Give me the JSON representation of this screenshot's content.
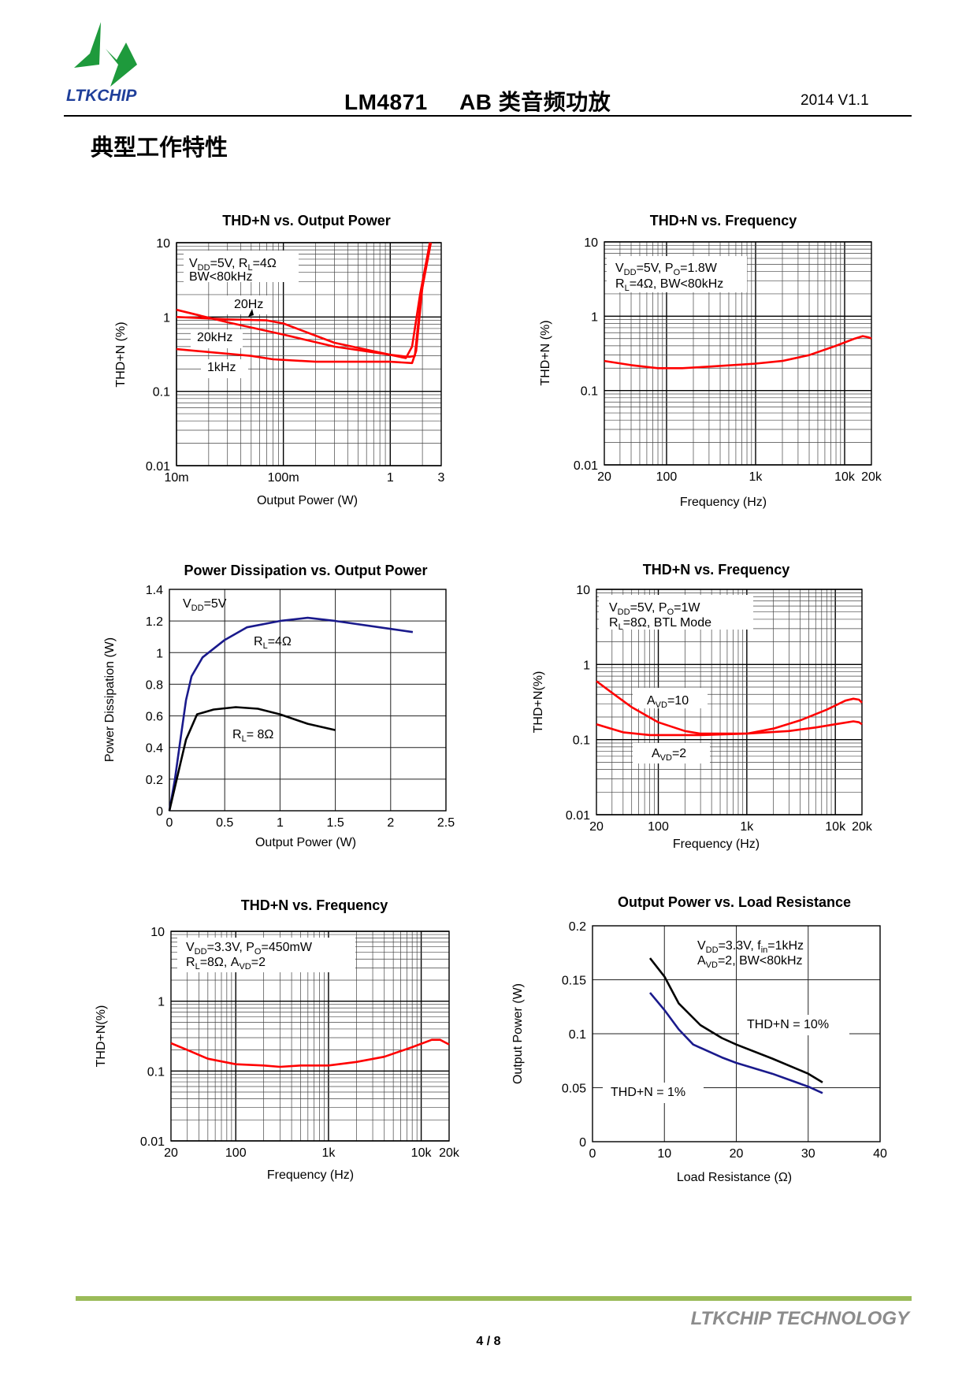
{
  "header": {
    "logo_text": "LTKCHIP",
    "doc_title": "LM4871     AB 类音频功放",
    "version": "2014 V1.1",
    "colors": {
      "logo_green": "#1e9a3c",
      "logo_blue": "#1f3f9a"
    }
  },
  "section_title": "典型工作特性",
  "footer": {
    "brand": "LTKCHIP TECHNOLOGY",
    "page": "4 / 8",
    "bar_color": "#9bbb59"
  },
  "chart_data": [
    {
      "type": "line",
      "title": "THD+N vs. Output Power",
      "xlabel": "Output Power (W)",
      "ylabel": "THD+N (%)",
      "xscale": "log",
      "yscale": "log",
      "xlim": [
        0.01,
        3
      ],
      "ylim": [
        0.01,
        10
      ],
      "x_ticks": [
        0.01,
        0.1,
        1,
        3
      ],
      "x_tick_labels": [
        "10m",
        "100m",
        "1",
        "3"
      ],
      "y_ticks": [
        0.01,
        0.1,
        1,
        10
      ],
      "y_tick_labels": [
        "0.01",
        "0.1",
        "1",
        "10"
      ],
      "grid": true,
      "annotations": [
        [
          {
            "t": "V"
          },
          {
            "sub": "DD"
          },
          {
            "t": "=5V, R"
          },
          {
            "sub": "L"
          },
          {
            "t": "=4Ω"
          }
        ],
        [
          {
            "t": "BW<80kHz"
          }
        ],
        [
          {
            "t": "20Hz"
          }
        ],
        [
          {
            "t": "20kHz"
          }
        ],
        [
          {
            "t": "1kHz"
          }
        ]
      ],
      "series": [
        {
          "name": "20kHz",
          "color": "#ff0000",
          "points": [
            [
              0.01,
              1.25
            ],
            [
              0.03,
              0.85
            ],
            [
              0.1,
              0.58
            ],
            [
              0.3,
              0.4
            ],
            [
              1,
              0.31
            ],
            [
              1.4,
              0.28
            ],
            [
              1.6,
              0.4
            ],
            [
              1.9,
              2
            ],
            [
              2.35,
              10
            ]
          ]
        },
        {
          "name": "20Hz",
          "color": "#ff0000",
          "points": [
            [
              0.01,
              1.0
            ],
            [
              0.03,
              0.93
            ],
            [
              0.07,
              0.9
            ],
            [
              0.1,
              0.82
            ],
            [
              0.3,
              0.45
            ],
            [
              1,
              0.31
            ],
            [
              1.5,
              0.29
            ],
            [
              1.7,
              0.3
            ],
            [
              1.95,
              2
            ],
            [
              2.35,
              10
            ]
          ]
        },
        {
          "name": "1kHz",
          "color": "#ff0000",
          "points": [
            [
              0.01,
              0.37
            ],
            [
              0.05,
              0.3
            ],
            [
              0.08,
              0.27
            ],
            [
              0.2,
              0.25
            ],
            [
              1,
              0.25
            ],
            [
              1.6,
              0.24
            ],
            [
              1.75,
              0.35
            ],
            [
              2.0,
              2.5
            ],
            [
              2.4,
              10
            ]
          ]
        }
      ]
    },
    {
      "type": "line",
      "title": "THD+N vs. Frequency",
      "xlabel": "Frequency (Hz)",
      "ylabel": "THD+N (%)",
      "xscale": "log",
      "yscale": "log",
      "xlim": [
        20,
        20000
      ],
      "ylim": [
        0.01,
        10
      ],
      "x_ticks": [
        20,
        100,
        1000,
        10000,
        20000
      ],
      "x_tick_labels": [
        "20",
        "100",
        "1k",
        "10k",
        "20k"
      ],
      "y_ticks": [
        0.01,
        0.1,
        1,
        10
      ],
      "y_tick_labels": [
        "0.01",
        "0.1",
        "1",
        "10"
      ],
      "grid": true,
      "annotations": [
        [
          {
            "t": "V"
          },
          {
            "sub": "DD"
          },
          {
            "t": "=5V, P"
          },
          {
            "sub": "O"
          },
          {
            "t": "=1.8W"
          }
        ],
        [
          {
            "t": "R"
          },
          {
            "sub": "L"
          },
          {
            "t": "=4Ω, BW<80kHz"
          }
        ]
      ],
      "series": [
        {
          "color": "#ff0000",
          "points": [
            [
              20,
              0.25
            ],
            [
              40,
              0.22
            ],
            [
              80,
              0.2
            ],
            [
              150,
              0.2
            ],
            [
              300,
              0.21
            ],
            [
              1000,
              0.23
            ],
            [
              2000,
              0.25
            ],
            [
              4000,
              0.3
            ],
            [
              8000,
              0.4
            ],
            [
              13000,
              0.5
            ],
            [
              16000,
              0.54
            ],
            [
              18500,
              0.52
            ],
            [
              20000,
              0.5
            ]
          ]
        }
      ]
    },
    {
      "type": "line",
      "title": "Power Dissipation vs. Output Power",
      "xlabel": "Output Power (W)",
      "ylabel": "Power Dissipation (W)",
      "xscale": "linear",
      "yscale": "linear",
      "xlim": [
        0,
        2.5
      ],
      "ylim": [
        0,
        1.4
      ],
      "x_ticks": [
        0,
        0.5,
        1,
        1.5,
        2,
        2.5
      ],
      "x_tick_labels": [
        "0",
        "0.5",
        "1",
        "1.5",
        "2",
        "2.5"
      ],
      "y_ticks": [
        0,
        0.2,
        0.4,
        0.6,
        0.8,
        1,
        1.2,
        1.4
      ],
      "y_tick_labels": [
        "0",
        "0.2",
        "0.4",
        "0.6",
        "0.8",
        "1",
        "1.2",
        "1.4"
      ],
      "grid": true,
      "annotations": [
        [
          {
            "t": "V"
          },
          {
            "sub": "DD"
          },
          {
            "t": "=5V"
          }
        ],
        [
          {
            "t": "R"
          },
          {
            "sub": "L"
          },
          {
            "t": "=4Ω"
          }
        ],
        [
          {
            "t": "R"
          },
          {
            "sub": "L"
          },
          {
            "t": "= 8Ω"
          }
        ]
      ],
      "series": [
        {
          "name": "RL=4Ω",
          "color": "#1a1a8c",
          "points": [
            [
              0,
              0
            ],
            [
              0.05,
              0.2
            ],
            [
              0.1,
              0.45
            ],
            [
              0.15,
              0.7
            ],
            [
              0.2,
              0.85
            ],
            [
              0.3,
              0.97
            ],
            [
              0.5,
              1.08
            ],
            [
              0.7,
              1.16
            ],
            [
              1,
              1.2
            ],
            [
              1.25,
              1.22
            ],
            [
              1.5,
              1.2
            ],
            [
              2,
              1.15
            ],
            [
              2.2,
              1.13
            ]
          ]
        },
        {
          "name": "RL= 8Ω",
          "color": "#000000",
          "points": [
            [
              0,
              0
            ],
            [
              0.05,
              0.15
            ],
            [
              0.1,
              0.3
            ],
            [
              0.15,
              0.45
            ],
            [
              0.25,
              0.61
            ],
            [
              0.4,
              0.64
            ],
            [
              0.6,
              0.655
            ],
            [
              0.8,
              0.645
            ],
            [
              1,
              0.61
            ],
            [
              1.25,
              0.55
            ],
            [
              1.5,
              0.51
            ]
          ]
        }
      ]
    },
    {
      "type": "line",
      "title": "THD+N vs. Frequency",
      "xlabel": "Frequency (Hz)",
      "ylabel": "THD+N(%)",
      "xscale": "log",
      "yscale": "log",
      "xlim": [
        20,
        20000
      ],
      "ylim": [
        0.01,
        10
      ],
      "x_ticks": [
        20,
        100,
        1000,
        10000,
        20000
      ],
      "x_tick_labels": [
        "20",
        "100",
        "1k",
        "10k",
        "20k"
      ],
      "y_ticks": [
        0.01,
        0.1,
        1,
        10
      ],
      "y_tick_labels": [
        "0.01",
        "0.1",
        "1",
        "10"
      ],
      "grid": true,
      "annotations": [
        [
          {
            "t": "V"
          },
          {
            "sub": "DD"
          },
          {
            "t": "=5V, P"
          },
          {
            "sub": "O"
          },
          {
            "t": "=1W"
          }
        ],
        [
          {
            "t": "R"
          },
          {
            "sub": "L"
          },
          {
            "t": "=8Ω, BTL Mode"
          }
        ],
        [
          {
            "t": "A"
          },
          {
            "sub": "VD"
          },
          {
            "t": "=10"
          }
        ],
        [
          {
            "t": "A"
          },
          {
            "sub": "VD"
          },
          {
            "t": "=2"
          }
        ]
      ],
      "series": [
        {
          "name": "AVD=10",
          "color": "#ff0000",
          "points": [
            [
              20,
              0.6
            ],
            [
              30,
              0.42
            ],
            [
              50,
              0.27
            ],
            [
              100,
              0.17
            ],
            [
              200,
              0.13
            ],
            [
              300,
              0.12
            ],
            [
              1000,
              0.12
            ],
            [
              2000,
              0.14
            ],
            [
              4000,
              0.18
            ],
            [
              8000,
              0.25
            ],
            [
              13000,
              0.33
            ],
            [
              16000,
              0.35
            ],
            [
              18500,
              0.34
            ],
            [
              20000,
              0.31
            ]
          ]
        },
        {
          "name": "AVD=2",
          "color": "#ff0000",
          "points": [
            [
              20,
              0.16
            ],
            [
              40,
              0.125
            ],
            [
              80,
              0.115
            ],
            [
              300,
              0.115
            ],
            [
              1000,
              0.12
            ],
            [
              3000,
              0.13
            ],
            [
              6000,
              0.145
            ],
            [
              10000,
              0.16
            ],
            [
              16000,
              0.175
            ],
            [
              18500,
              0.17
            ],
            [
              20000,
              0.16
            ]
          ]
        }
      ]
    },
    {
      "type": "line",
      "title": "THD+N vs. Frequency",
      "xlabel": "Frequency (Hz)",
      "ylabel": "THD+N(%)",
      "xscale": "log",
      "yscale": "log",
      "xlim": [
        20,
        20000
      ],
      "ylim": [
        0.01,
        10
      ],
      "x_ticks": [
        20,
        100,
        1000,
        10000,
        20000
      ],
      "x_tick_labels": [
        "20",
        "100",
        "1k",
        "10k",
        "20k"
      ],
      "y_ticks": [
        0.01,
        0.1,
        1,
        10
      ],
      "y_tick_labels": [
        "0.01",
        "0.1",
        "1",
        "10"
      ],
      "grid": true,
      "annotations": [
        [
          {
            "t": "V"
          },
          {
            "sub": "DD"
          },
          {
            "t": "=3.3V, P"
          },
          {
            "sub": "O"
          },
          {
            "t": "=450mW"
          }
        ],
        [
          {
            "t": "R"
          },
          {
            "sub": "L"
          },
          {
            "t": "=8Ω, A"
          },
          {
            "sub": "VD"
          },
          {
            "t": "=2"
          }
        ]
      ],
      "series": [
        {
          "color": "#ff0000",
          "points": [
            [
              20,
              0.25
            ],
            [
              30,
              0.2
            ],
            [
              50,
              0.15
            ],
            [
              100,
              0.125
            ],
            [
              200,
              0.12
            ],
            [
              300,
              0.115
            ],
            [
              500,
              0.12
            ],
            [
              1000,
              0.12
            ],
            [
              2000,
              0.135
            ],
            [
              4000,
              0.16
            ],
            [
              8000,
              0.22
            ],
            [
              13000,
              0.28
            ],
            [
              16000,
              0.28
            ],
            [
              20000,
              0.24
            ]
          ]
        }
      ]
    },
    {
      "type": "line",
      "title": "Output Power vs. Load Resistance",
      "xlabel": "Load Resistance (Ω)",
      "ylabel": "Output Power (W)",
      "xscale": "linear",
      "yscale": "linear",
      "xlim": [
        0,
        40
      ],
      "ylim": [
        0,
        0.2
      ],
      "x_ticks": [
        0,
        10,
        20,
        30,
        40
      ],
      "x_tick_labels": [
        "0",
        "10",
        "20",
        "30",
        "40"
      ],
      "y_ticks": [
        0,
        0.05,
        0.1,
        0.15,
        0.2
      ],
      "y_tick_labels": [
        "0",
        "0.05",
        "0.1",
        "0.15",
        "0.2"
      ],
      "grid": true,
      "annotations": [
        [
          {
            "t": "V"
          },
          {
            "sub": "DD"
          },
          {
            "t": "=3.3V, f"
          },
          {
            "sub": "in"
          },
          {
            "t": "=1kHz"
          }
        ],
        [
          {
            "t": "A"
          },
          {
            "sub": "VD"
          },
          {
            "t": "=2, BW<80kHz"
          }
        ],
        [
          {
            "t": "THD+N = 10%"
          }
        ],
        [
          {
            "t": "THD+N = 1%"
          }
        ]
      ],
      "series": [
        {
          "name": "THD+N = 10%",
          "color": "#000000",
          "points": [
            [
              8,
              0.17
            ],
            [
              10,
              0.153
            ],
            [
              12,
              0.128
            ],
            [
              15,
              0.108
            ],
            [
              18,
              0.096
            ],
            [
              20,
              0.09
            ],
            [
              25,
              0.077
            ],
            [
              30,
              0.063
            ],
            [
              32,
              0.055
            ]
          ]
        },
        {
          "name": "THD+N = 1%",
          "color": "#1a1a8c",
          "points": [
            [
              8,
              0.138
            ],
            [
              10,
              0.122
            ],
            [
              12,
              0.104
            ],
            [
              14,
              0.09
            ],
            [
              18,
              0.078
            ],
            [
              20,
              0.073
            ],
            [
              25,
              0.063
            ],
            [
              30,
              0.051
            ],
            [
              32,
              0.045
            ]
          ]
        }
      ]
    }
  ]
}
